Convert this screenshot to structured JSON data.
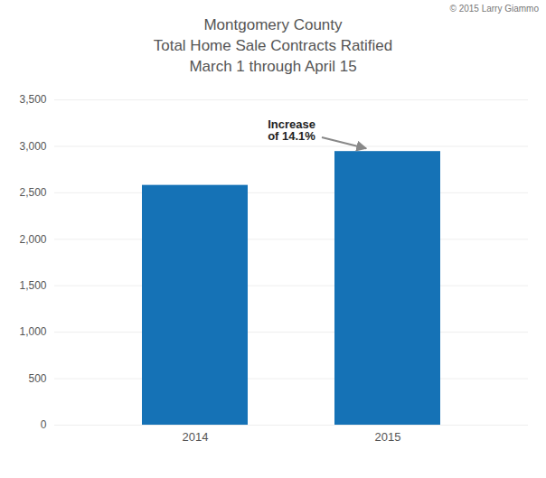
{
  "chart_data": {
    "type": "bar",
    "title": "Montgomery County\nTotal Home Sale Contracts Ratified\nMarch 1 through April 15",
    "categories": [
      "2014",
      "2015"
    ],
    "values": [
      2580,
      2944
    ],
    "color": "#1572B6",
    "ylim": [
      0,
      3500
    ],
    "yticks": [
      0,
      500,
      {
        "value": 1000,
        "label": "1,000"
      },
      {
        "value": 1500,
        "label": "1,500"
      },
      {
        "value": 2000,
        "label": "2,000"
      },
      {
        "value": 2500,
        "label": "2,500"
      },
      {
        "value": 3000,
        "label": "3,000"
      },
      {
        "value": 3500,
        "label": "3,500"
      }
    ],
    "grid": true,
    "annotations": [
      "Increase\nof 14.1%",
      "© 2015 Larry Giammo"
    ]
  }
}
